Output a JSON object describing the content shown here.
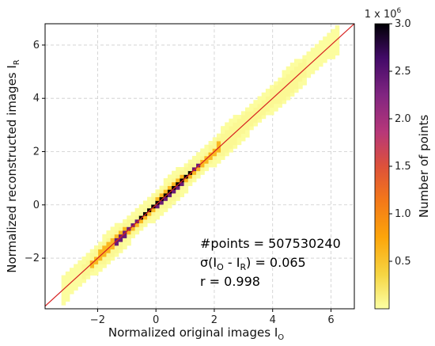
{
  "chart_data": {
    "type": "heatmap",
    "title": "",
    "xlabel": "Normalized original images I",
    "xlabel_sub": "O",
    "ylabel": "Normalized reconstructed images I",
    "ylabel_sub": "R",
    "xlim": [
      -3.8,
      6.8
    ],
    "ylim": [
      -3.9,
      6.8
    ],
    "xticks": [
      -2,
      0,
      2,
      4,
      6
    ],
    "yticks": [
      -2,
      0,
      2,
      4,
      6
    ],
    "xtick_labels": [
      "−2",
      "0",
      "2",
      "4",
      "6"
    ],
    "ytick_labels": [
      "−2",
      "0",
      "2",
      "4",
      "6"
    ],
    "grid": true,
    "identity_line": {
      "from": [
        -3.9,
        -3.9
      ],
      "to": [
        6.8,
        6.8
      ],
      "color": "#d62020"
    },
    "colorbar": {
      "label": "Number of points",
      "multiplier": "1 x 10",
      "multiplier_exp": "6",
      "range": [
        0.0,
        3.0
      ],
      "ticks": [
        0.5,
        1.0,
        1.5,
        2.0,
        2.5,
        3.0
      ],
      "tick_labels": [
        "0.5",
        "1.0",
        "1.5",
        "2.0",
        "2.5",
        "3.0"
      ],
      "colormap": "inferno_r"
    },
    "density": {
      "description_ranges": "spread envelope around identity line",
      "regions": [
        {
          "x": [
            -3.3,
            6.3
          ],
          "halfwidth": 0.55,
          "value": 0.02
        },
        {
          "x": [
            -2.6,
            5.2
          ],
          "halfwidth": 0.35,
          "value": 0.06
        },
        {
          "x": [
            -2.2,
            2.2
          ],
          "halfwidth": 0.18,
          "value": 0.6
        },
        {
          "x": [
            -1.4,
            1.5
          ],
          "halfwidth": 0.1,
          "value": 2.4
        },
        {
          "x": [
            -0.6,
            1.2
          ],
          "halfwidth": 0.06,
          "value": 3.0
        }
      ]
    },
    "annotations": {
      "points": "#points = 507530240",
      "sigma_prefix": "σ(I",
      "sigma_sub1": "O",
      "sigma_mid": " - I",
      "sigma_sub2": "R",
      "sigma_suffix": ") = 0.065",
      "r": "r = 0.998"
    }
  }
}
